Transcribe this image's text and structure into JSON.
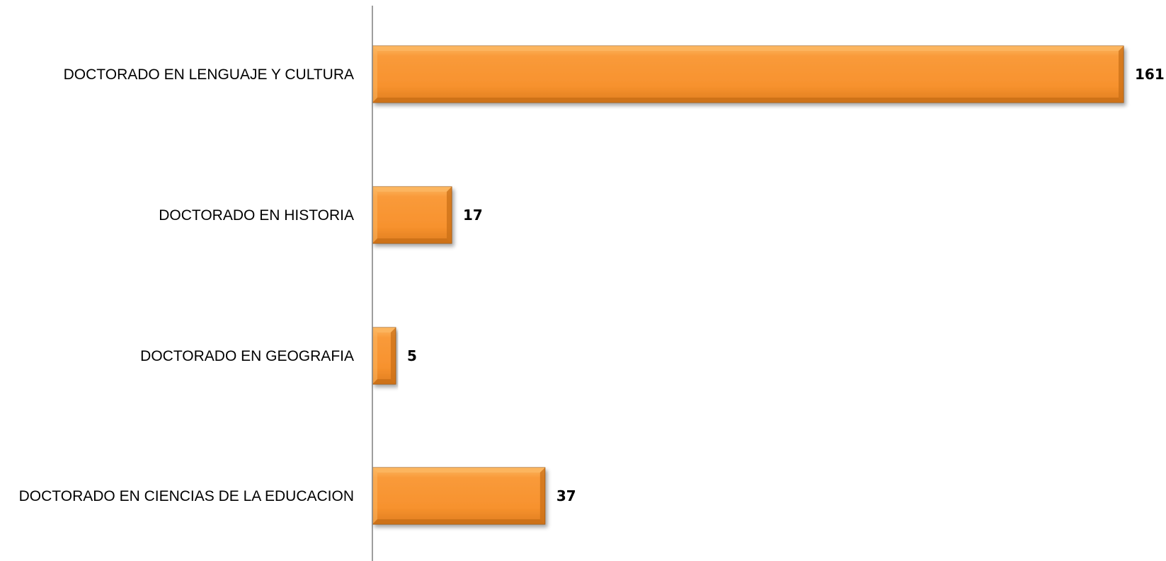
{
  "chart_data": {
    "type": "bar",
    "orientation": "horizontal",
    "categories": [
      "DOCTORADO EN LENGUAJE Y CULTURA",
      "DOCTORADO EN HISTORIA",
      "DOCTORADO EN GEOGRAFIA",
      "DOCTORADO EN CIENCIAS DE LA EDUCACION"
    ],
    "values": [
      161,
      17,
      5,
      37
    ],
    "value_labels": [
      "161",
      "17",
      "5",
      "37"
    ],
    "title": "",
    "xlabel": "",
    "ylabel": "",
    "xlim": [
      0,
      161
    ],
    "grid": false,
    "legend": "none",
    "colors": {
      "bar_fill": "#F7922E",
      "bar_light": "#FBB660",
      "bar_dark": "#C86E16",
      "bar_edge": "#9A5410",
      "axis": "#7F7F7F",
      "text": "#000000"
    }
  }
}
